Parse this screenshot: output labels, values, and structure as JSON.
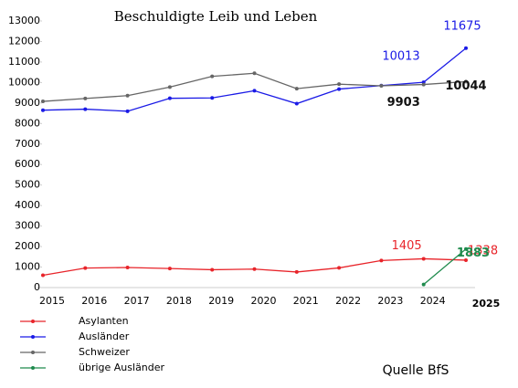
{
  "chart_data": {
    "type": "line",
    "title": "Beschuldigte Leib und Leben",
    "annotation": "Quelle BfS",
    "categories": [
      "2015",
      "2016",
      "2017",
      "2018",
      "2019",
      "2020",
      "2021",
      "2022",
      "2023",
      "2024",
      "2025"
    ],
    "ylim": [
      0,
      13000
    ],
    "yticks": [
      0,
      1000,
      2000,
      3000,
      4000,
      5000,
      6000,
      7000,
      8000,
      9000,
      10000,
      11000,
      12000,
      13000
    ],
    "grid": false,
    "legend": "bottom-left",
    "series": [
      {
        "name": "Asylanten",
        "color": "#e8242a",
        "values": [
          600,
          950,
          980,
          930,
          870,
          900,
          760,
          960,
          1320,
          1405,
          1338
        ],
        "value_labels": [
          null,
          null,
          null,
          null,
          null,
          null,
          null,
          null,
          null,
          "1405",
          "1338"
        ]
      },
      {
        "name": "Ausländer",
        "color": "#1a1ae6",
        "values": [
          8650,
          8700,
          8600,
          9230,
          9250,
          9600,
          8970,
          9680,
          9850,
          10013,
          11675
        ],
        "value_labels": [
          null,
          null,
          null,
          null,
          null,
          null,
          null,
          null,
          null,
          "10013",
          "11675"
        ]
      },
      {
        "name": "Schweizer",
        "color": "#666666",
        "values": [
          9080,
          9220,
          9360,
          9780,
          10300,
          10450,
          9700,
          9920,
          9840,
          9903,
          10044
        ],
        "value_labels": [
          null,
          null,
          null,
          null,
          null,
          null,
          null,
          null,
          null,
          "9903",
          "10044"
        ]
      },
      {
        "name": "übrige Ausländer",
        "color": "#1e8a4c",
        "values": [
          null,
          null,
          null,
          null,
          null,
          null,
          null,
          null,
          null,
          150,
          1883
        ],
        "value_labels": [
          null,
          null,
          null,
          null,
          null,
          null,
          null,
          null,
          null,
          null,
          "1883"
        ]
      }
    ]
  }
}
